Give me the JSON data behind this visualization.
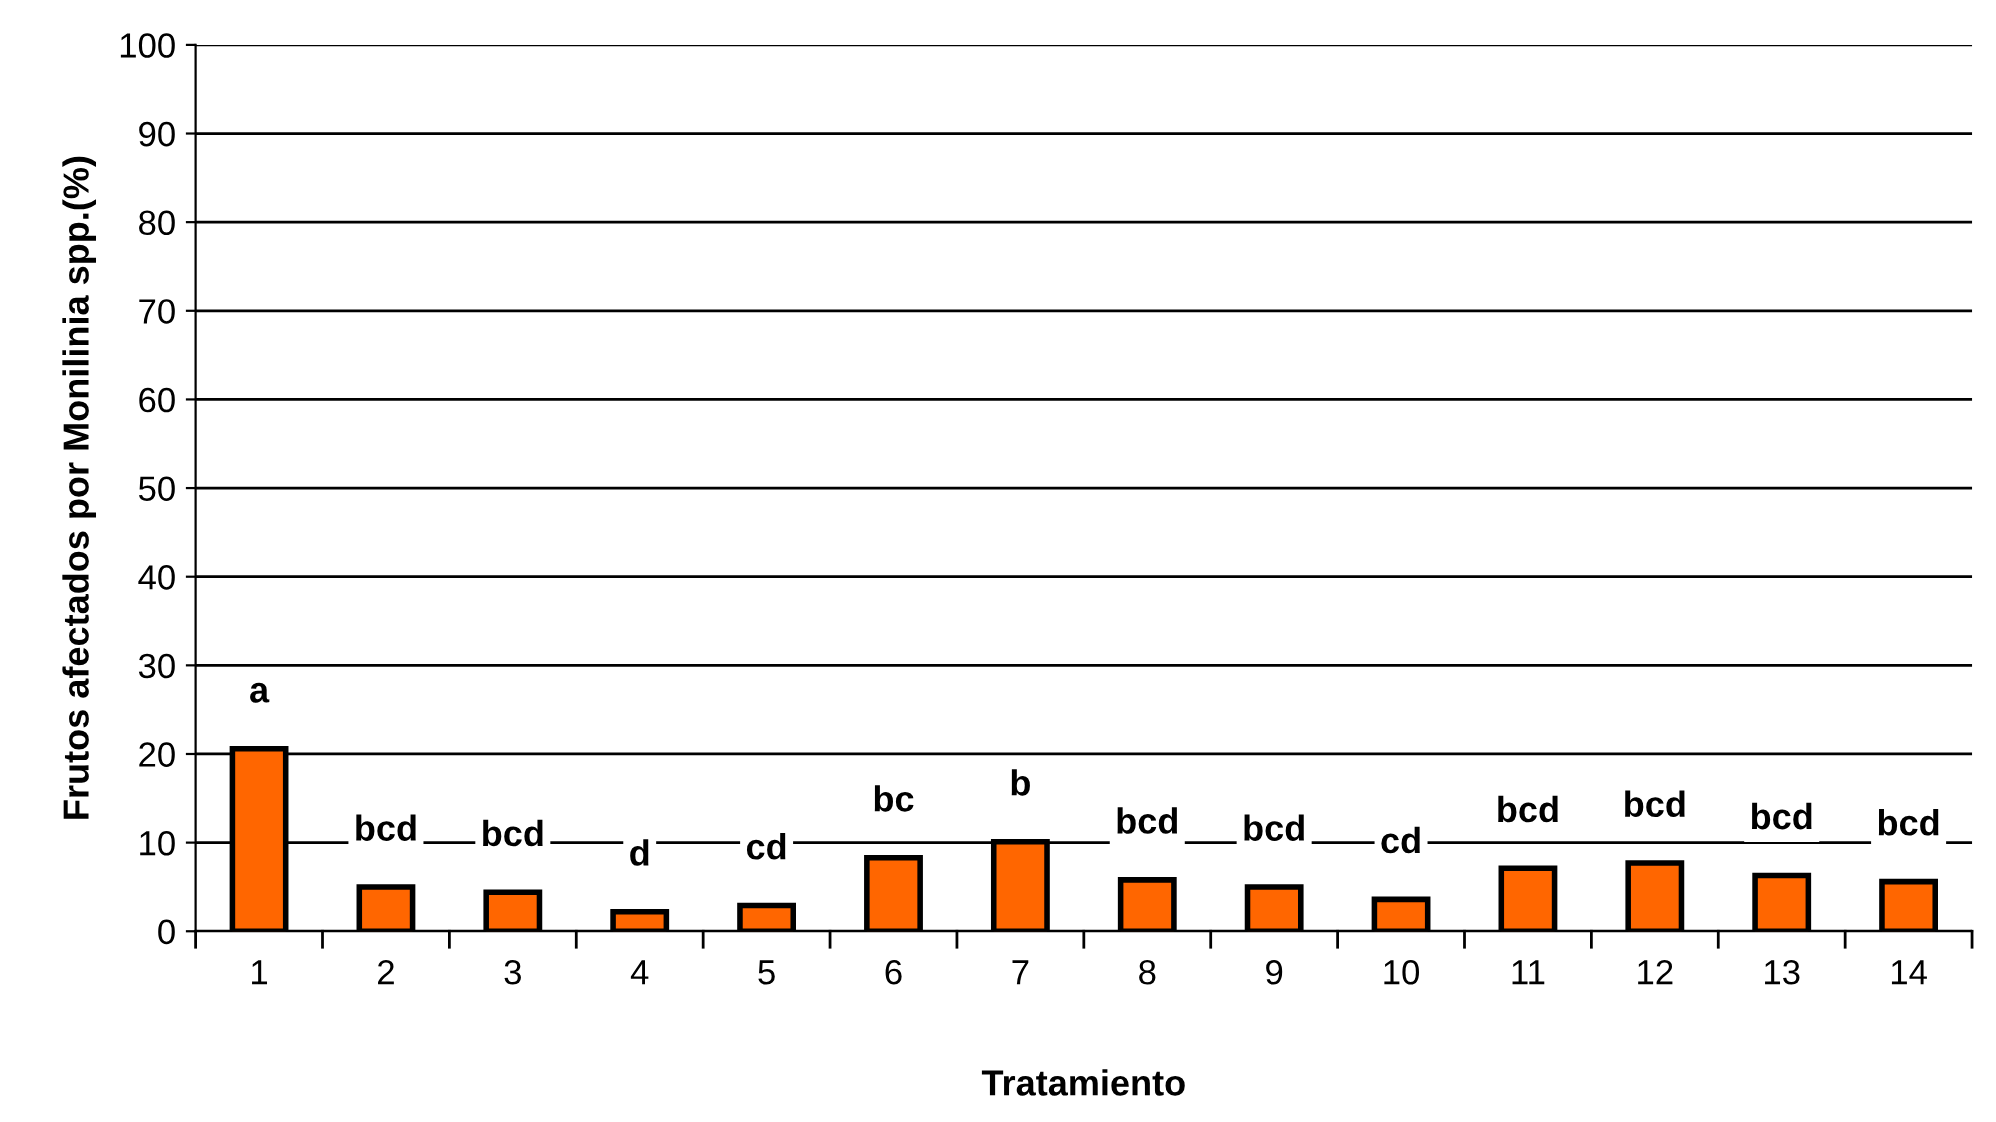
{
  "chart_data": {
    "type": "bar",
    "xlabel": "Tratamiento",
    "ylabel": "Frutos afectados por Monilinia spp.(%)",
    "categories": [
      "1",
      "2",
      "3",
      "4",
      "5",
      "6",
      "7",
      "8",
      "9",
      "10",
      "11",
      "12",
      "13",
      "14"
    ],
    "values": [
      20.6,
      5.0,
      4.4,
      2.2,
      2.9,
      8.3,
      10.1,
      5.8,
      5.0,
      3.6,
      7.1,
      7.7,
      6.3,
      5.6
    ],
    "color": "#ff6600",
    "ylim": [
      0,
      100
    ],
    "yticks": [
      0,
      10,
      20,
      30,
      40,
      50,
      60,
      70,
      80,
      90,
      100
    ],
    "grid": "y",
    "annotations": [
      {
        "text": "a",
        "x": "1",
        "y": 20.6
      },
      {
        "text": "bcd",
        "x": "2",
        "y": 5.0
      },
      {
        "text": "bcd",
        "x": "3",
        "y": 4.4
      },
      {
        "text": "d",
        "x": "4",
        "y": 2.2
      },
      {
        "text": "cd",
        "x": "5",
        "y": 2.9
      },
      {
        "text": "bc",
        "x": "6",
        "y": 8.3
      },
      {
        "text": "b",
        "x": "7",
        "y": 10.1
      },
      {
        "text": "bcd",
        "x": "8",
        "y": 5.8
      },
      {
        "text": "bcd",
        "x": "9",
        "y": 5.0
      },
      {
        "text": "cd",
        "x": "10",
        "y": 3.6
      },
      {
        "text": "bcd",
        "x": "11",
        "y": 7.1
      },
      {
        "text": "bcd",
        "x": "12",
        "y": 7.7
      },
      {
        "text": "bcd",
        "x": "13",
        "y": 6.3
      },
      {
        "text": "bcd",
        "x": "14",
        "y": 5.6
      }
    ]
  }
}
